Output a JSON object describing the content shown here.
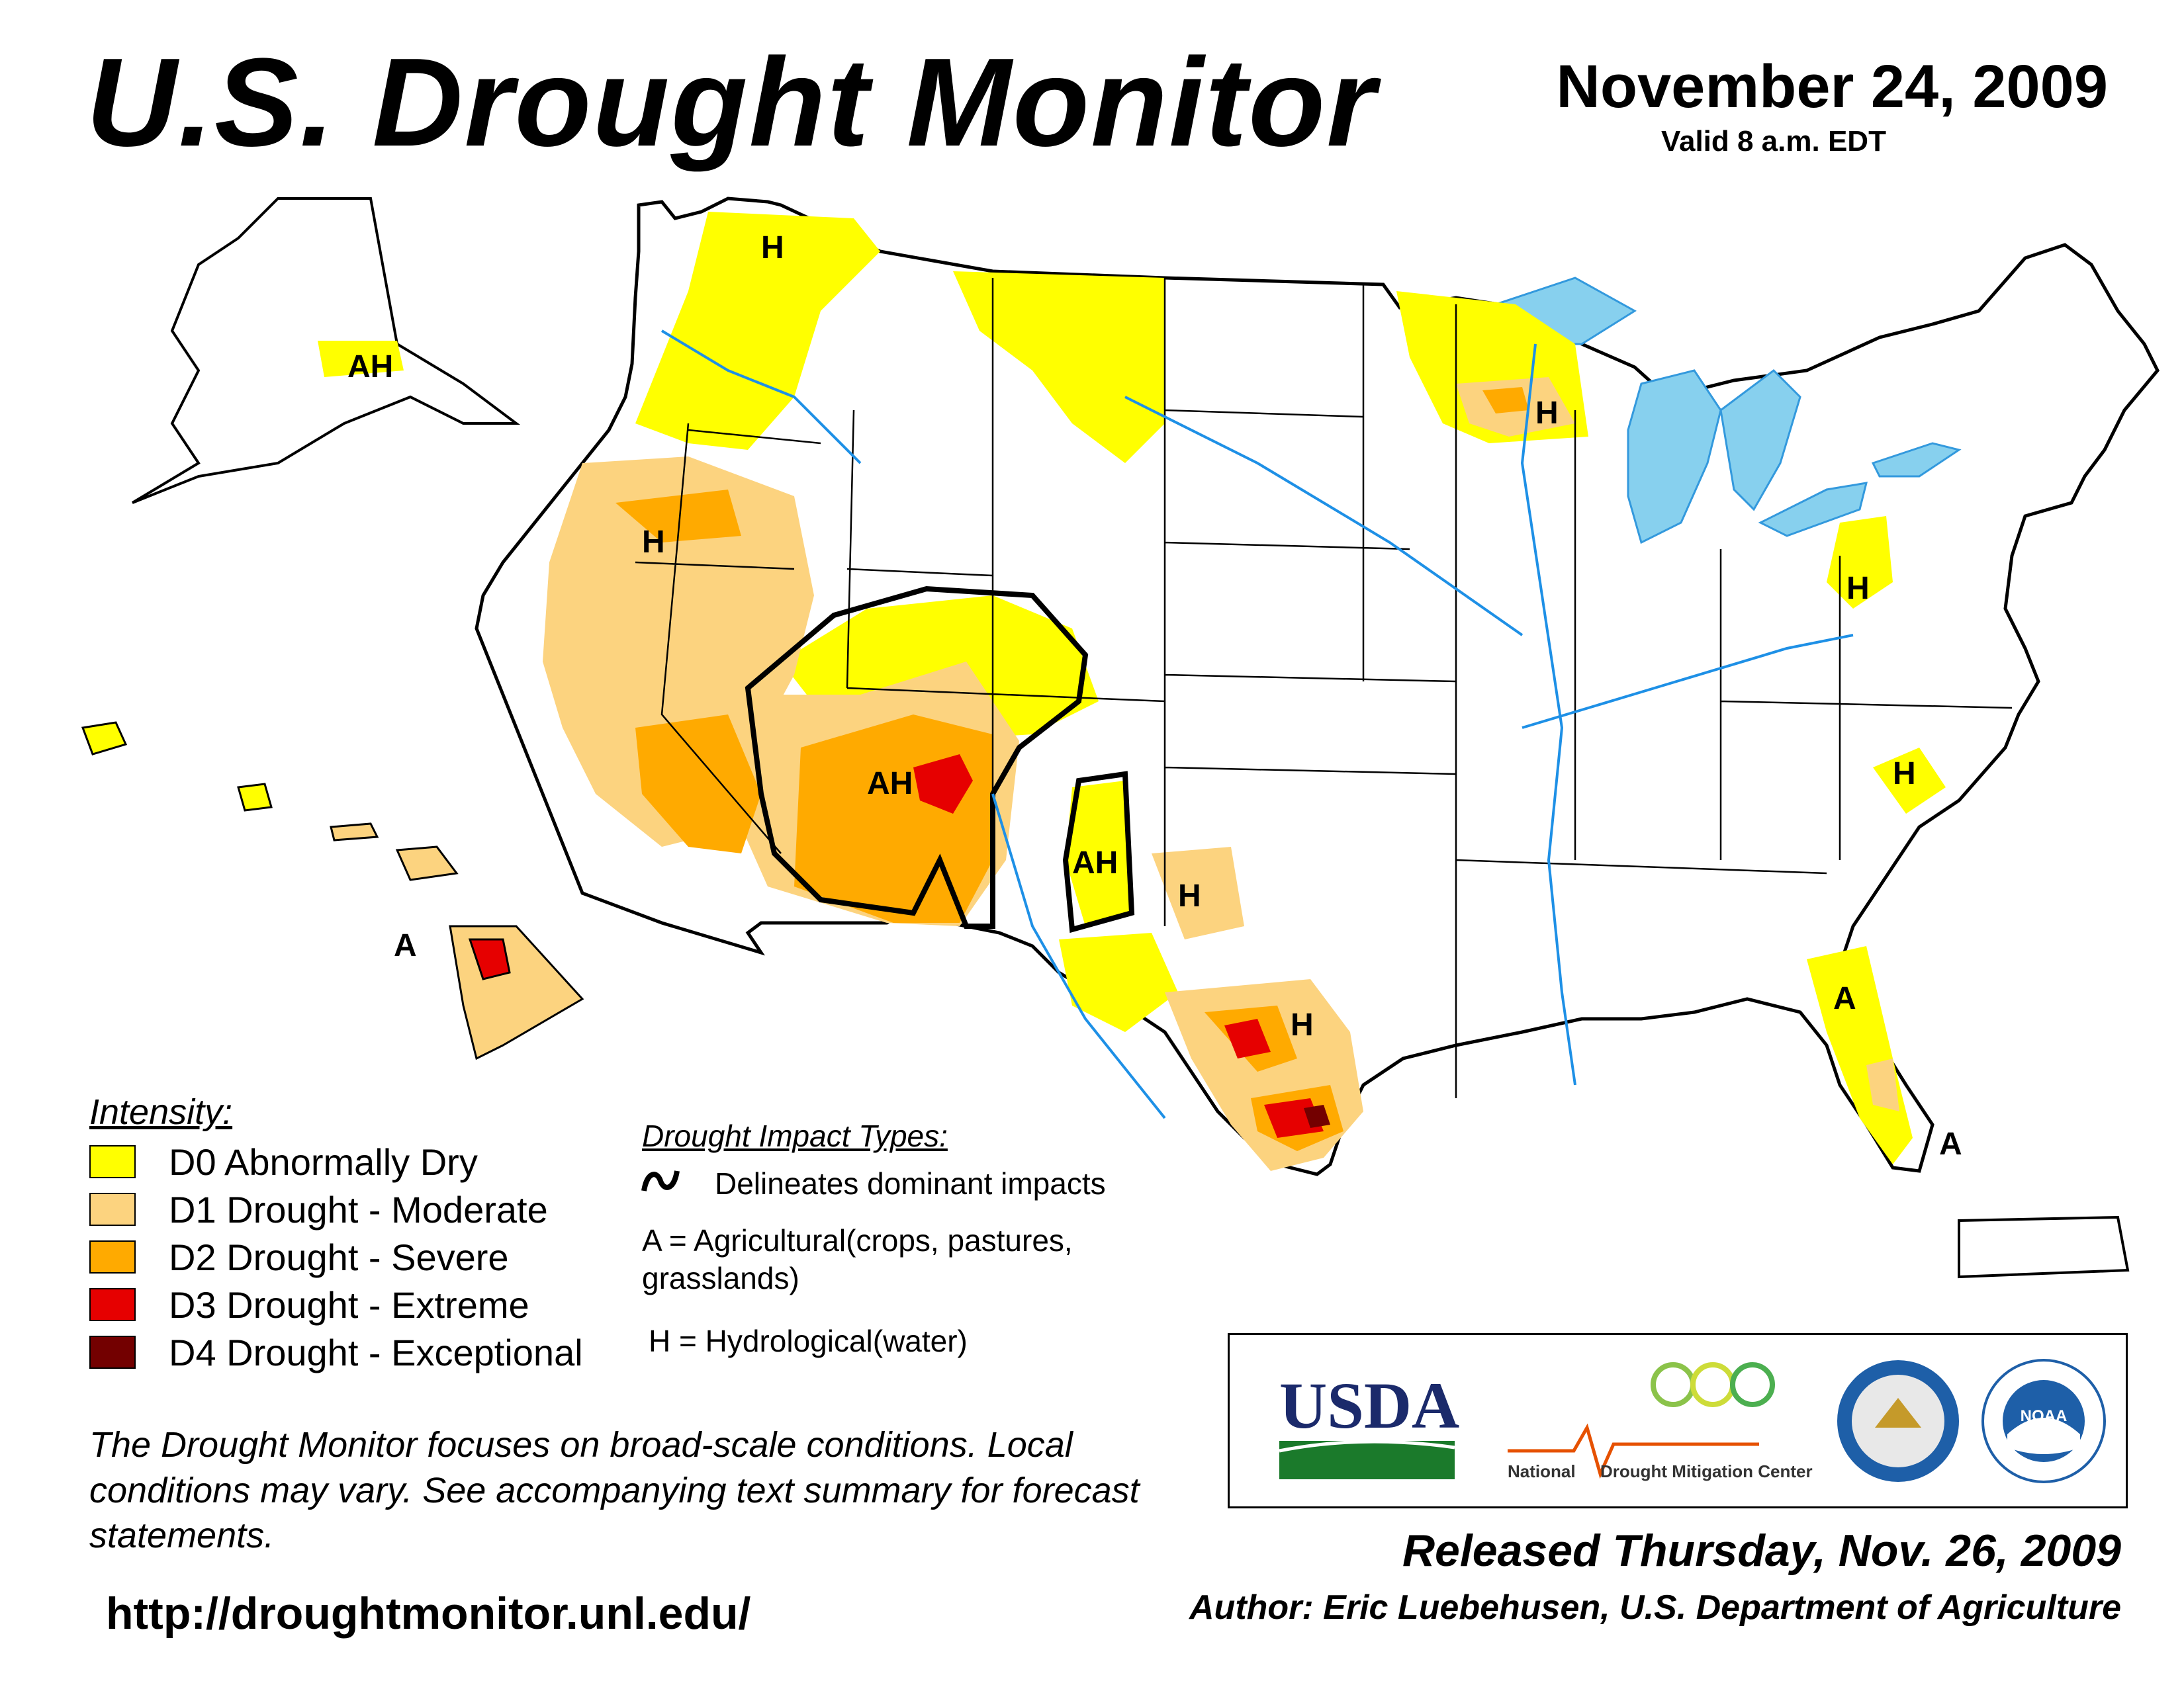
{
  "header": {
    "title": "U.S. Drought Monitor",
    "date": "November 24, 2009",
    "valid": "Valid 8 a.m. EDT"
  },
  "legend": {
    "title": "Intensity:",
    "items": [
      {
        "label": "D0 Abnormally Dry",
        "color": "#ffff00"
      },
      {
        "label": "D1 Drought - Moderate",
        "color": "#fcd37f"
      },
      {
        "label": "D2 Drought - Severe",
        "color": "#ffaa00"
      },
      {
        "label": "D3 Drought - Extreme",
        "color": "#e60000"
      },
      {
        "label": "D4 Drought - Exceptional",
        "color": "#730000"
      }
    ]
  },
  "impacts": {
    "title": "Drought Impact Types:",
    "delineates": "Delineates dominant impacts",
    "agricultural_line1": "A = Agricultural(crops, pastures,",
    "agricultural_line2": "grasslands)",
    "hydrological": "H = Hydrological(water)"
  },
  "map_labels": {
    "A": "A",
    "H": "H",
    "AH": "AH"
  },
  "disclaimer": "The Drought Monitor focuses on broad-scale conditions. Local conditions may vary. See accompanying text summary for forecast statements.",
  "url": "http://droughtmonitor.unl.edu/",
  "released": "Released Thursday, Nov. 26, 2009",
  "author": "Author: Eric Luebehusen, U.S. Department of Agriculture",
  "logos": {
    "usda": "USDA",
    "ndmc_line1": "National",
    "ndmc_line2": "Drought Mitigation Center",
    "noaa": "NOAA"
  },
  "colors": {
    "water": "#87d0ee",
    "river": "#1e90e6",
    "state_line": "#000000",
    "county_line": "#a0a0a0"
  }
}
